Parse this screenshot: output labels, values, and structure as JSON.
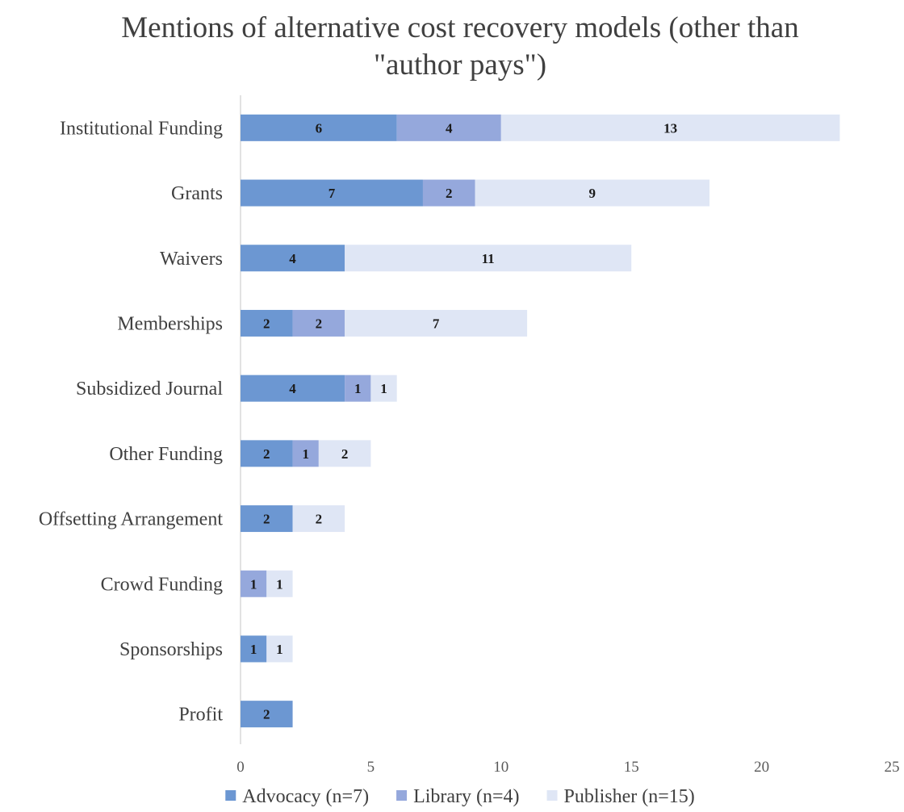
{
  "chart_data": {
    "type": "bar",
    "orientation": "horizontal",
    "stacked": true,
    "title_lines": [
      "Mentions of alternative cost recovery models (other than",
      "\"author pays\")"
    ],
    "categories": [
      "Institutional Funding",
      "Grants",
      "Waivers",
      "Memberships",
      "Subsidized Journal",
      "Other Funding",
      "Offsetting Arrangement",
      "Crowd Funding",
      "Sponsorships",
      "Profit"
    ],
    "series": [
      {
        "name": "Advocacy (n=7)",
        "color": "#6c97d2",
        "values": [
          6,
          7,
          4,
          2,
          4,
          2,
          2,
          0,
          1,
          2
        ]
      },
      {
        "name": "Library (n=4)",
        "color": "#95a8dc",
        "values": [
          4,
          2,
          0,
          2,
          1,
          1,
          0,
          1,
          0,
          0
        ]
      },
      {
        "name": "Publisher (n=15)",
        "color": "#dfe6f5",
        "values": [
          13,
          9,
          11,
          7,
          1,
          2,
          2,
          1,
          1,
          0
        ]
      }
    ],
    "xlim": [
      0,
      25
    ],
    "xticks": [
      0,
      5,
      10,
      15,
      20,
      25
    ],
    "grid": false,
    "legend_position": "bottom"
  }
}
